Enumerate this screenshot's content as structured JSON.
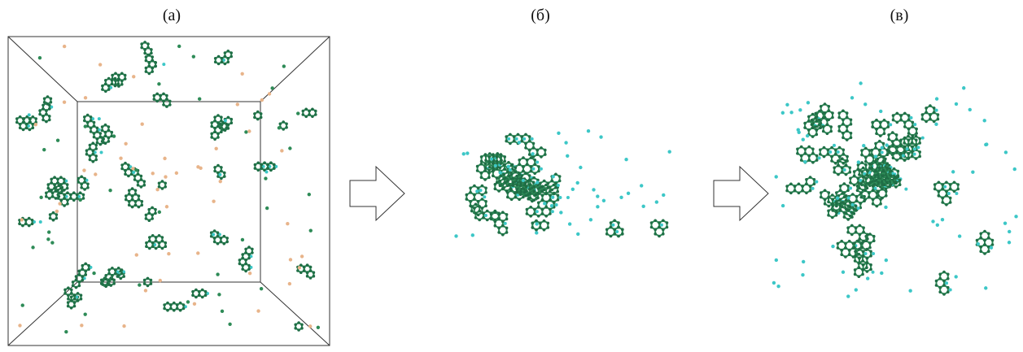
{
  "panels": [
    {
      "label": "(а)"
    },
    {
      "label": "(б)"
    },
    {
      "label": "(в)"
    }
  ]
}
